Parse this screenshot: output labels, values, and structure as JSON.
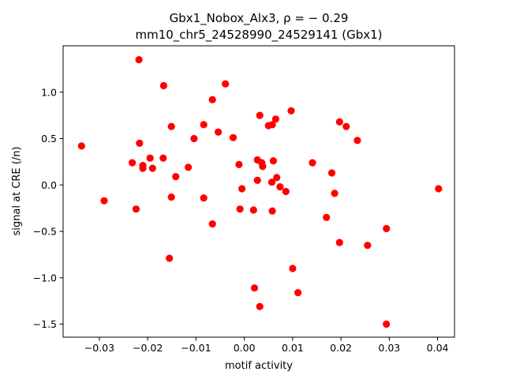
{
  "chart_data": {
    "type": "scatter",
    "title_line1": "Gbx1_Nobox_Alx3, ρ = − 0.29",
    "title_line2": "mm10_chr5_24528990_24529141 (Gbx1)",
    "xlabel": "motif activity",
    "ylabel": "signal at CRE (/n)",
    "xlim": [
      -0.0375,
      0.0435
    ],
    "ylim": [
      -1.64,
      1.5
    ],
    "xticks": [
      -0.03,
      -0.02,
      -0.01,
      0.0,
      0.01,
      0.02,
      0.03,
      0.04
    ],
    "xtick_labels": [
      "−0.03",
      "−0.02",
      "−0.01",
      "0.00",
      "0.01",
      "0.02",
      "0.03",
      "0.04"
    ],
    "yticks": [
      -1.5,
      -1.0,
      -0.5,
      0.0,
      0.5,
      1.0
    ],
    "ytick_labels": [
      "−1.5",
      "−1.0",
      "−0.5",
      "0.0",
      "0.5",
      "1.0"
    ],
    "grid": false,
    "marker_color": "#ff0000",
    "points": [
      [
        -0.0337,
        0.42
      ],
      [
        -0.029,
        -0.17
      ],
      [
        -0.0232,
        0.24
      ],
      [
        -0.0224,
        -0.26
      ],
      [
        -0.0218,
        1.35
      ],
      [
        -0.0217,
        0.45
      ],
      [
        -0.021,
        0.21
      ],
      [
        -0.021,
        0.18
      ],
      [
        -0.0195,
        0.29
      ],
      [
        -0.019,
        0.18
      ],
      [
        -0.0168,
        0.29
      ],
      [
        -0.0167,
        1.07
      ],
      [
        -0.0155,
        -0.79
      ],
      [
        -0.0151,
        0.63
      ],
      [
        -0.0151,
        -0.13
      ],
      [
        -0.0142,
        0.09
      ],
      [
        -0.0116,
        0.19
      ],
      [
        -0.0104,
        0.5
      ],
      [
        -0.0084,
        0.65
      ],
      [
        -0.0084,
        -0.14
      ],
      [
        -0.0066,
        0.92
      ],
      [
        -0.0066,
        -0.42
      ],
      [
        -0.0054,
        0.57
      ],
      [
        -0.0039,
        1.09
      ],
      [
        -0.0023,
        0.51
      ],
      [
        -0.0011,
        0.22
      ],
      [
        -0.0009,
        -0.26
      ],
      [
        -0.0005,
        -0.04
      ],
      [
        0.0019,
        -0.27
      ],
      [
        0.0021,
        -1.11
      ],
      [
        0.0027,
        0.27
      ],
      [
        0.0027,
        0.05
      ],
      [
        0.0032,
        0.75
      ],
      [
        0.0032,
        -1.31
      ],
      [
        0.0036,
        0.24
      ],
      [
        0.0038,
        0.2
      ],
      [
        0.005,
        0.64
      ],
      [
        0.0057,
        0.03
      ],
      [
        0.0058,
        0.65
      ],
      [
        0.0058,
        -0.28
      ],
      [
        0.006,
        0.26
      ],
      [
        0.0065,
        0.71
      ],
      [
        0.0067,
        0.08
      ],
      [
        0.0074,
        -0.02
      ],
      [
        0.0086,
        -0.07
      ],
      [
        0.0097,
        0.8
      ],
      [
        0.01,
        -0.9
      ],
      [
        0.0111,
        -1.16
      ],
      [
        0.0141,
        0.24
      ],
      [
        0.017,
        -0.35
      ],
      [
        0.0181,
        0.13
      ],
      [
        0.0187,
        -0.09
      ],
      [
        0.0197,
        0.68
      ],
      [
        0.0197,
        -0.62
      ],
      [
        0.0211,
        0.63
      ],
      [
        0.0234,
        0.48
      ],
      [
        0.0255,
        -0.65
      ],
      [
        0.0294,
        -0.47
      ],
      [
        0.0294,
        -1.5
      ],
      [
        0.0402,
        -0.04
      ]
    ]
  }
}
